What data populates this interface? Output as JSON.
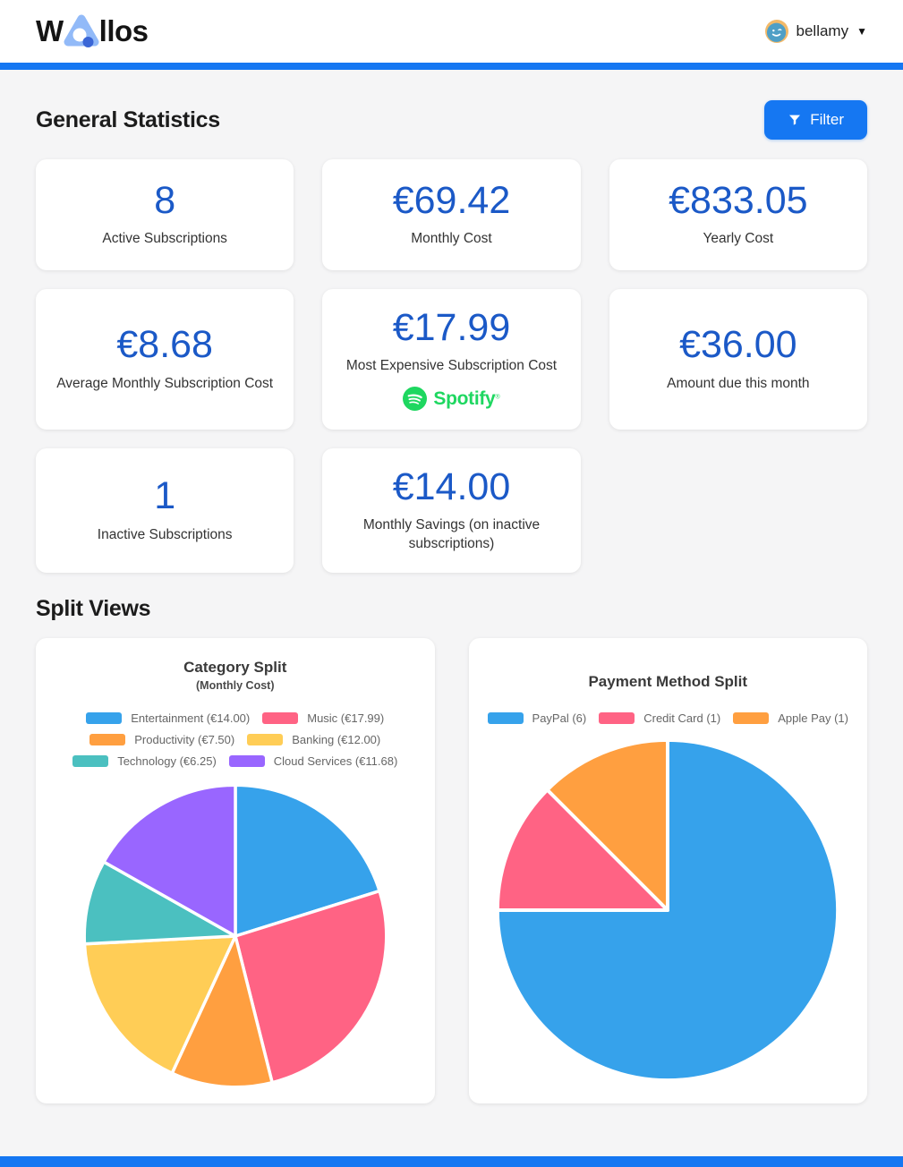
{
  "header": {
    "logo_prefix": "W",
    "logo_suffix": "llos",
    "username": "bellamy",
    "caret": "▼"
  },
  "general": {
    "title": "General Statistics",
    "filter_label": "Filter",
    "spotify_label": "Spotify",
    "spotify_reg": "®",
    "cards": [
      {
        "value": "8",
        "label": "Active Subscriptions"
      },
      {
        "value": "€69.42",
        "label": "Monthly Cost"
      },
      {
        "value": "€833.05",
        "label": "Yearly Cost"
      },
      {
        "value": "€8.68",
        "label": "Average Monthly Subscription Cost"
      },
      {
        "value": "€17.99",
        "label": "Most Expensive Subscription Cost"
      },
      {
        "value": "€36.00",
        "label": "Amount due this month"
      },
      {
        "value": "1",
        "label": "Inactive Subscriptions"
      },
      {
        "value": "€14.00",
        "label": "Monthly Savings (on inactive subscriptions)"
      }
    ]
  },
  "split": {
    "title": "Split Views"
  },
  "chart_data": [
    {
      "type": "pie",
      "title": "Category Split",
      "subtitle": "(Monthly Cost)",
      "labels": [
        "Entertainment (€14.00)",
        "Music (€17.99)",
        "Productivity (€7.50)",
        "Banking (€12.00)",
        "Technology (€6.25)",
        "Cloud Services (€11.68)"
      ],
      "values": [
        14.0,
        17.99,
        7.5,
        12.0,
        6.25,
        11.68
      ],
      "colors": [
        "#36A2EB",
        "#FF6384",
        "#FF9F40",
        "#FFCD56",
        "#4BC0C0",
        "#9966FF"
      ],
      "legend_position": "top",
      "start_angle_deg": -90,
      "direction": "clockwise"
    },
    {
      "type": "pie",
      "title": "Payment Method Split",
      "labels": [
        "PayPal (6)",
        "Credit Card (1)",
        "Apple Pay (1)"
      ],
      "values": [
        6,
        1,
        1
      ],
      "colors": [
        "#36A2EB",
        "#FF6384",
        "#FF9F40"
      ],
      "legend_position": "top",
      "start_angle_deg": -90,
      "direction": "clockwise"
    }
  ],
  "colors": {
    "accent": "#1577f2",
    "stat-value": "#1b59c7",
    "spotify": "#1ed760",
    "legend-text": "#666666"
  }
}
